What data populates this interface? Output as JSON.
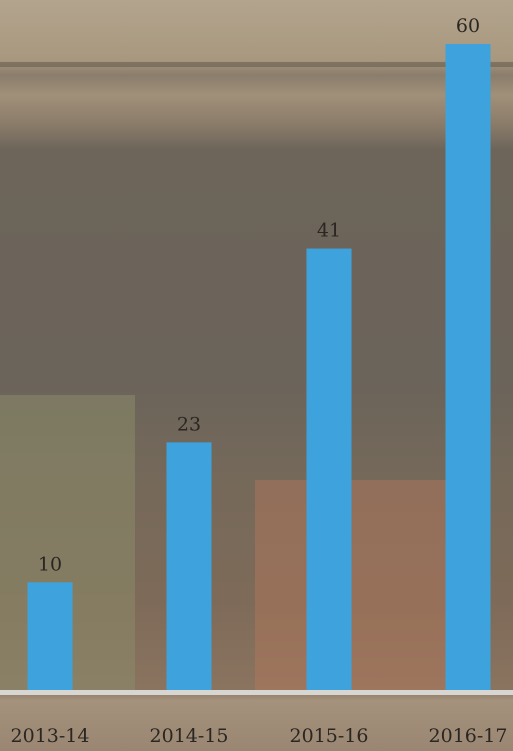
{
  "chart_data": {
    "type": "bar",
    "categories": [
      "2013-14",
      "2014-15",
      "2015-16",
      "2016-17"
    ],
    "values": [
      10,
      23,
      41,
      60
    ],
    "color": "#3ea3dc"
  }
}
